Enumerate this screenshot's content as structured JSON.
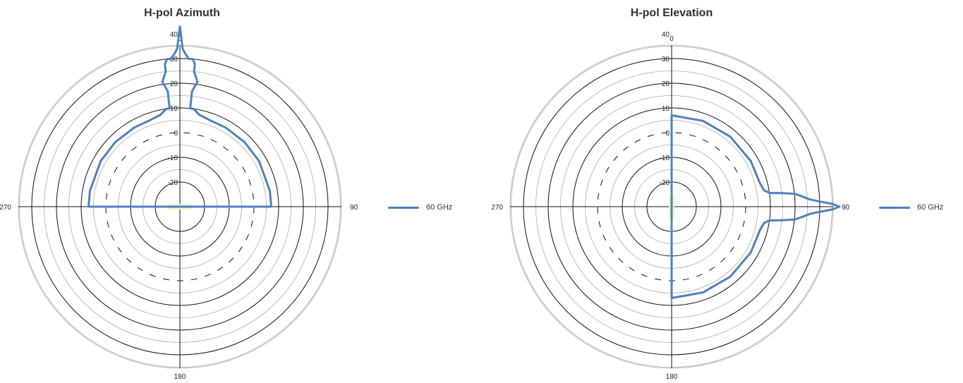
{
  "chart_data": [
    {
      "type": "polar-line",
      "title": "H-pol Azimuth",
      "angle_labels": [
        "0",
        "90",
        "180",
        "270"
      ],
      "radial_ticks": [
        "-20",
        "-10",
        "0",
        "10",
        "20",
        "30",
        "40"
      ],
      "r_range": [
        -20,
        40
      ],
      "grid": true,
      "legend_position": "right",
      "series": [
        {
          "name": "60 GHz",
          "color": "#4f81bd",
          "points": [
            [
              -90,
              7
            ],
            [
              -80,
              7
            ],
            [
              -60,
              7
            ],
            [
              -45,
              7
            ],
            [
              -30,
              7
            ],
            [
              -20,
              7
            ],
            [
              -12,
              8
            ],
            [
              -8,
              10
            ],
            [
              -6,
              10
            ],
            [
              -6,
              17
            ],
            [
              -7,
              19
            ],
            [
              -8,
              21
            ],
            [
              -7,
              23
            ],
            [
              -6,
              25
            ],
            [
              -6,
              28
            ],
            [
              -5,
              30
            ],
            [
              -3.5,
              30
            ],
            [
              -2,
              32
            ],
            [
              -1,
              34
            ],
            [
              0,
              43
            ],
            [
              1,
              34
            ],
            [
              2,
              32
            ],
            [
              3.5,
              30
            ],
            [
              5,
              30
            ],
            [
              6,
              28
            ],
            [
              6,
              25
            ],
            [
              7,
              23
            ],
            [
              8,
              21
            ],
            [
              7,
              19
            ],
            [
              6,
              17
            ],
            [
              6,
              10
            ],
            [
              8,
              10
            ],
            [
              12,
              8
            ],
            [
              20,
              7
            ],
            [
              30,
              7
            ],
            [
              45,
              7
            ],
            [
              60,
              7
            ],
            [
              80,
              7
            ],
            [
              90,
              7
            ]
          ]
        }
      ],
      "highlight": {
        "type": "noise-floor-band",
        "color": "#f5f0c4"
      }
    },
    {
      "type": "polar-line",
      "title": "H-pol Elevation",
      "angle_labels": [
        "0",
        "90",
        "180",
        "270"
      ],
      "radial_ticks": [
        "-20",
        "-10",
        "0",
        "10",
        "20",
        "30",
        "40"
      ],
      "r_range": [
        -20,
        40
      ],
      "grid": true,
      "legend_position": "right",
      "series": [
        {
          "name": "60 GHz",
          "color": "#4f81bd",
          "points": [
            [
              0,
              7
            ],
            [
              20,
              7
            ],
            [
              40,
              7
            ],
            [
              60,
              7
            ],
            [
              75,
              7
            ],
            [
              80,
              8
            ],
            [
              82,
              10
            ],
            [
              83,
              15
            ],
            [
              84,
              20
            ],
            [
              85,
              22
            ],
            [
              86,
              24
            ],
            [
              87,
              26
            ],
            [
              88,
              30
            ],
            [
              89,
              35
            ],
            [
              90,
              38
            ],
            [
              91,
              35
            ],
            [
              92,
              30
            ],
            [
              93,
              26
            ],
            [
              94,
              24
            ],
            [
              95,
              22
            ],
            [
              96,
              20
            ],
            [
              97,
              15
            ],
            [
              98,
              10
            ],
            [
              100,
              8
            ],
            [
              105,
              7
            ],
            [
              120,
              7
            ],
            [
              140,
              7
            ],
            [
              160,
              7
            ],
            [
              180,
              7
            ]
          ]
        }
      ],
      "highlight": {
        "type": "noise-floor-band",
        "color": "#f5f0c4"
      }
    }
  ]
}
